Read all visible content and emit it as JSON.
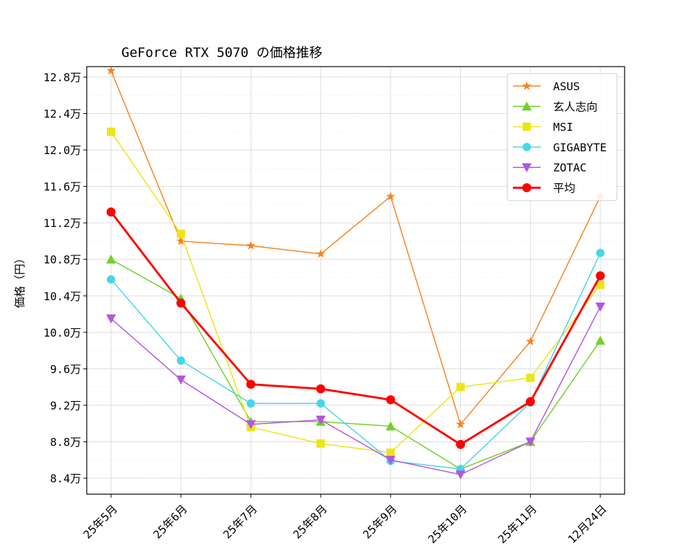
{
  "chart_data": {
    "type": "line",
    "title": "GeForce RTX 5070 の価格推移",
    "xlabel": "",
    "ylabel": "価格（円）",
    "categories": [
      "25年5月",
      "25年6月",
      "25年7月",
      "25年8月",
      "25年9月",
      "25年10月",
      "25年11月",
      "12月24日"
    ],
    "yticks": [
      8.4,
      8.8,
      9.2,
      9.6,
      10.0,
      10.4,
      10.8,
      11.2,
      11.6,
      12.0,
      12.4,
      12.8
    ],
    "ytick_suffix": "万",
    "ylim": [
      8.24,
      12.93
    ],
    "unit": "万円",
    "grid": true,
    "legend_position": "top-right",
    "series": [
      {
        "name": "ASUS",
        "color": "#f5831f",
        "marker": "star",
        "values": [
          12.87,
          11.0,
          10.95,
          10.86,
          11.49,
          8.99,
          9.9,
          11.49
        ]
      },
      {
        "name": "玄人志向",
        "color": "#72d02a",
        "marker": "triangle-up",
        "values": [
          10.8,
          10.37,
          9.02,
          9.02,
          8.97,
          8.5,
          8.8,
          9.91
        ]
      },
      {
        "name": "MSI",
        "color": "#ece51a",
        "marker": "square",
        "values": [
          12.2,
          11.08,
          8.96,
          8.78,
          8.68,
          9.4,
          9.5,
          10.52
        ]
      },
      {
        "name": "GIGABYTE",
        "color": "#47d6e6",
        "marker": "circle",
        "values": [
          10.58,
          9.69,
          9.22,
          9.22,
          8.59,
          8.5,
          9.23,
          10.87
        ]
      },
      {
        "name": "ZOTAC",
        "color": "#b256e0",
        "marker": "triangle-down",
        "values": [
          10.15,
          9.48,
          8.99,
          9.04,
          8.6,
          8.44,
          8.8,
          10.28
        ]
      },
      {
        "name": "平均",
        "color": "#ff0000",
        "marker": "circle",
        "bold": true,
        "values": [
          11.32,
          10.32,
          9.43,
          9.38,
          9.26,
          8.77,
          9.24,
          10.62
        ]
      }
    ]
  }
}
